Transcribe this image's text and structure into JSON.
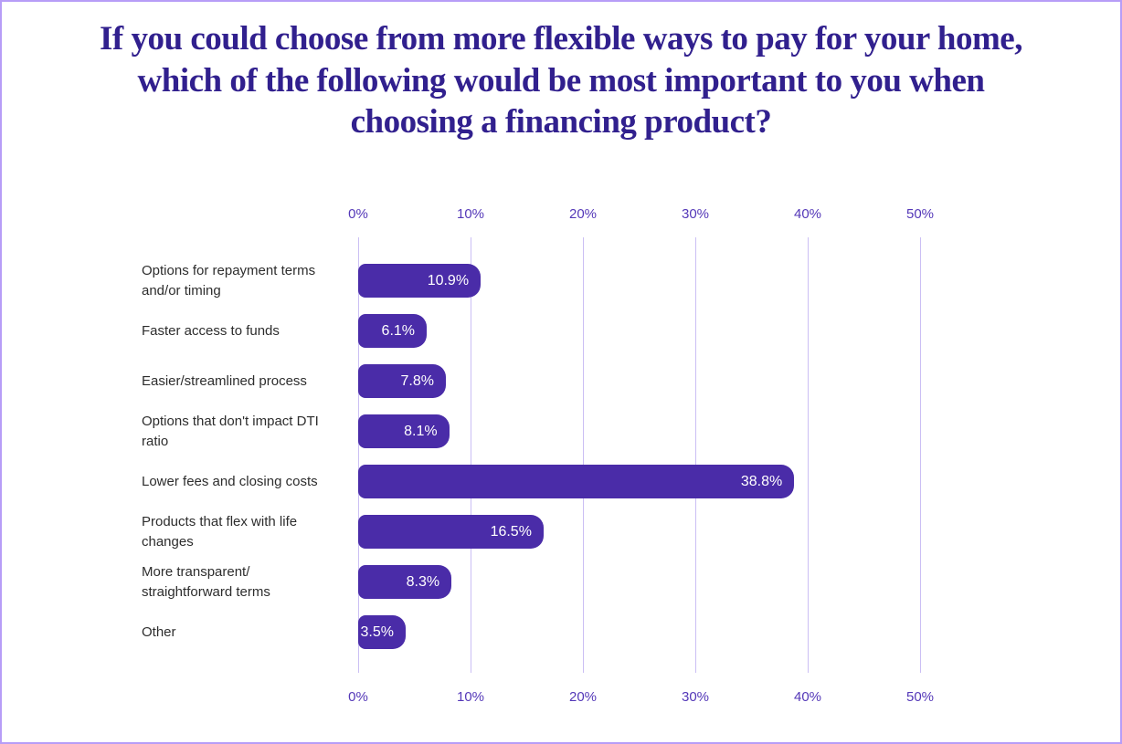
{
  "frame": {
    "border_color": "#B79DF7",
    "background_color": "#FFFFFF"
  },
  "chart_data": {
    "type": "bar",
    "orientation": "horizontal",
    "title": "If you could choose from more flexible ways to pay for your home, which of the following would be most important to you when choosing a financing product?",
    "categories": [
      "Options for repayment terms\nand/or timing",
      "Faster access to funds",
      "Easier/streamlined process",
      "Options that don't impact DTI\nratio",
      "Lower fees and closing costs",
      "Products that flex with life\nchanges",
      "More transparent/\nstraightforward terms",
      "Other"
    ],
    "values": [
      10.9,
      6.1,
      7.8,
      8.1,
      38.8,
      16.5,
      8.3,
      3.5
    ],
    "value_labels": [
      "10.9%",
      "6.1%",
      "7.8%",
      "8.1%",
      "38.8%",
      "16.5%",
      "8.3%",
      "3.5%"
    ],
    "x_axis": {
      "min": 0,
      "max": 50,
      "tick_values": [
        0,
        10,
        20,
        30,
        40,
        50
      ],
      "ticks": [
        "0%",
        "10%",
        "20%",
        "30%",
        "40%",
        "50%"
      ],
      "position": "top-and-bottom"
    },
    "grid": true,
    "legend": false,
    "xlabel": "",
    "ylabel": "",
    "colors": {
      "bar": "#4A2CA8",
      "value_label": "#FFFFFF",
      "title": "#31208E",
      "axis_labels": "#5438B8",
      "gridlines": "#CBBFF4",
      "category_labels": "#2D2D2D"
    }
  }
}
